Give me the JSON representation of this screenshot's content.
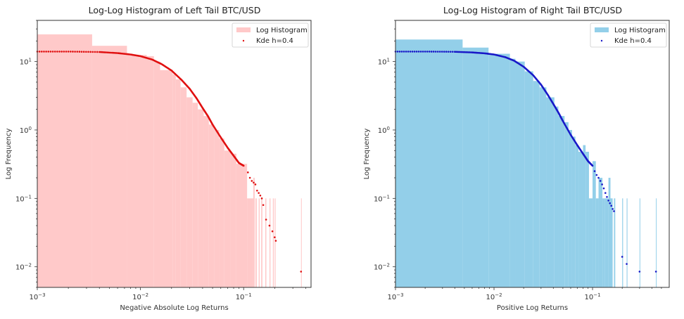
{
  "chart_data": [
    {
      "type": "bar",
      "subtype": "log-log histogram with kde scatter",
      "title": "Log-Log Histogram of Left Tail BTC/USD",
      "xlabel": "Negative Absolute Log Returns",
      "ylabel": "Log Frequency",
      "xscale": "log",
      "yscale": "log",
      "xlim": [
        0.001,
        0.45
      ],
      "ylim": [
        0.005,
        40
      ],
      "xticks": [
        0.001,
        0.01,
        0.1
      ],
      "xtick_labels": [
        [
          "10",
          "−3"
        ],
        [
          "10",
          "−2"
        ],
        [
          "10",
          "−1"
        ]
      ],
      "yticks": [
        0.01,
        0.1,
        1,
        10
      ],
      "ytick_labels": [
        [
          "10",
          "−2"
        ],
        [
          "10",
          "−1"
        ],
        [
          "10",
          "0"
        ],
        [
          "10",
          "1"
        ]
      ],
      "legend": {
        "position": "top-right",
        "entries": [
          "Log Histogram",
          "Kde h=0.4"
        ]
      },
      "colors": {
        "hist": "#ffc9c9",
        "kde": "#e01010"
      },
      "histogram": [
        [
          0.001,
          0.0034,
          25
        ],
        [
          0.0034,
          0.0074,
          17
        ],
        [
          0.0074,
          0.0115,
          12.5
        ],
        [
          0.0115,
          0.0135,
          12
        ],
        [
          0.0135,
          0.0155,
          10
        ],
        [
          0.0155,
          0.0205,
          7.5
        ],
        [
          0.0205,
          0.022,
          6.5
        ],
        [
          0.022,
          0.0245,
          5.5
        ],
        [
          0.0245,
          0.028,
          4.2
        ],
        [
          0.028,
          0.032,
          3
        ],
        [
          0.032,
          0.036,
          2.5
        ],
        [
          0.036,
          0.041,
          2
        ],
        [
          0.041,
          0.046,
          1.6
        ],
        [
          0.046,
          0.052,
          1.2
        ],
        [
          0.052,
          0.058,
          1.0
        ],
        [
          0.058,
          0.065,
          0.75
        ],
        [
          0.065,
          0.075,
          0.5
        ],
        [
          0.075,
          0.085,
          0.45
        ],
        [
          0.085,
          0.095,
          0.32
        ],
        [
          0.095,
          0.108,
          0.32
        ],
        [
          0.108,
          0.124,
          0.1
        ],
        [
          0.124,
          0.128,
          0.2
        ],
        [
          0.13,
          0.134,
          0.1
        ],
        [
          0.14,
          0.143,
          0.1
        ],
        [
          0.148,
          0.152,
          0.1
        ],
        [
          0.162,
          0.166,
          0.1
        ],
        [
          0.178,
          0.182,
          0.1
        ],
        [
          0.192,
          0.196,
          0.1
        ],
        [
          0.2,
          0.204,
          0.1
        ],
        [
          0.36,
          0.364,
          0.1
        ]
      ],
      "kde_points": [
        [
          0.001,
          14
        ],
        [
          0.002,
          14
        ],
        [
          0.004,
          13.8
        ],
        [
          0.006,
          13.3
        ],
        [
          0.008,
          12.7
        ],
        [
          0.01,
          12
        ],
        [
          0.013,
          10.7
        ],
        [
          0.016,
          9.2
        ],
        [
          0.02,
          7.4
        ],
        [
          0.025,
          5.4
        ],
        [
          0.03,
          4
        ],
        [
          0.035,
          2.9
        ],
        [
          0.04,
          2.1
        ],
        [
          0.045,
          1.6
        ],
        [
          0.05,
          1.2
        ],
        [
          0.06,
          0.78
        ],
        [
          0.07,
          0.55
        ],
        [
          0.08,
          0.42
        ],
        [
          0.09,
          0.33
        ],
        [
          0.1,
          0.3
        ],
        [
          0.11,
          0.24
        ],
        [
          0.115,
          0.2
        ],
        [
          0.12,
          0.18
        ],
        [
          0.125,
          0.17
        ],
        [
          0.13,
          0.16
        ],
        [
          0.135,
          0.13
        ],
        [
          0.14,
          0.12
        ],
        [
          0.145,
          0.11
        ],
        [
          0.15,
          0.1
        ],
        [
          0.155,
          0.08
        ],
        [
          0.165,
          0.049
        ],
        [
          0.178,
          0.04
        ],
        [
          0.19,
          0.033
        ],
        [
          0.2,
          0.027
        ],
        [
          0.205,
          0.024
        ],
        [
          0.36,
          0.0085
        ]
      ]
    },
    {
      "type": "bar",
      "subtype": "log-log histogram with kde scatter",
      "title": "Log-Log Histogram of Right Tail BTC/USD",
      "xlabel": "Positive Log Returns",
      "ylabel": "Log Frequency",
      "xscale": "log",
      "yscale": "log",
      "xlim": [
        0.001,
        0.6
      ],
      "ylim": [
        0.005,
        40
      ],
      "xticks": [
        0.001,
        0.01,
        0.1
      ],
      "xtick_labels": [
        [
          "10",
          "−3"
        ],
        [
          "10",
          "−2"
        ],
        [
          "10",
          "−1"
        ]
      ],
      "yticks": [
        0.01,
        0.1,
        1,
        10
      ],
      "ytick_labels": [
        [
          "10",
          "−2"
        ],
        [
          "10",
          "−1"
        ],
        [
          "10",
          "0"
        ],
        [
          "10",
          "1"
        ]
      ],
      "legend": {
        "position": "top-right",
        "entries": [
          "Log Histogram",
          "Kde h=0.4"
        ]
      },
      "colors": {
        "hist": "#93cfe9",
        "kde": "#1818c8"
      },
      "histogram": [
        [
          0.001,
          0.0048,
          21
        ],
        [
          0.0048,
          0.0088,
          16
        ],
        [
          0.0088,
          0.0145,
          13
        ],
        [
          0.0145,
          0.0165,
          11
        ],
        [
          0.0165,
          0.0205,
          10
        ],
        [
          0.0205,
          0.025,
          7.2
        ],
        [
          0.025,
          0.029,
          5.2
        ],
        [
          0.029,
          0.034,
          4.2
        ],
        [
          0.034,
          0.041,
          3
        ],
        [
          0.041,
          0.045,
          2.2
        ],
        [
          0.045,
          0.052,
          1.6
        ],
        [
          0.052,
          0.057,
          1.3
        ],
        [
          0.057,
          0.062,
          1.0
        ],
        [
          0.062,
          0.067,
          0.8
        ],
        [
          0.067,
          0.072,
          0.6
        ],
        [
          0.072,
          0.08,
          0.48
        ],
        [
          0.08,
          0.085,
          0.6
        ],
        [
          0.085,
          0.092,
          0.48
        ],
        [
          0.092,
          0.1,
          0.1
        ],
        [
          0.1,
          0.108,
          0.35
        ],
        [
          0.108,
          0.115,
          0.1
        ],
        [
          0.115,
          0.126,
          0.2
        ],
        [
          0.126,
          0.134,
          0.1
        ],
        [
          0.134,
          0.145,
          0.1
        ],
        [
          0.145,
          0.152,
          0.2
        ],
        [
          0.152,
          0.16,
          0.1
        ],
        [
          0.165,
          0.17,
          0.1
        ],
        [
          0.2,
          0.204,
          0.1
        ],
        [
          0.222,
          0.226,
          0.1
        ],
        [
          0.3,
          0.304,
          0.1
        ],
        [
          0.44,
          0.444,
          0.1
        ]
      ],
      "kde_points": [
        [
          0.001,
          14
        ],
        [
          0.002,
          14
        ],
        [
          0.004,
          13.9
        ],
        [
          0.006,
          13.6
        ],
        [
          0.008,
          13.2
        ],
        [
          0.01,
          12.7
        ],
        [
          0.013,
          11.6
        ],
        [
          0.016,
          10.3
        ],
        [
          0.02,
          8.4
        ],
        [
          0.025,
          6.3
        ],
        [
          0.03,
          4.6
        ],
        [
          0.035,
          3.3
        ],
        [
          0.04,
          2.4
        ],
        [
          0.045,
          1.8
        ],
        [
          0.05,
          1.35
        ],
        [
          0.06,
          0.85
        ],
        [
          0.07,
          0.6
        ],
        [
          0.08,
          0.45
        ],
        [
          0.09,
          0.35
        ],
        [
          0.1,
          0.3
        ],
        [
          0.105,
          0.25
        ],
        [
          0.11,
          0.22
        ],
        [
          0.115,
          0.2
        ],
        [
          0.12,
          0.18
        ],
        [
          0.125,
          0.16
        ],
        [
          0.13,
          0.14
        ],
        [
          0.135,
          0.12
        ],
        [
          0.14,
          0.105
        ],
        [
          0.145,
          0.093
        ],
        [
          0.15,
          0.085
        ],
        [
          0.155,
          0.078
        ],
        [
          0.16,
          0.07
        ],
        [
          0.165,
          0.065
        ],
        [
          0.2,
          0.014
        ],
        [
          0.222,
          0.011
        ],
        [
          0.3,
          0.0085
        ],
        [
          0.44,
          0.0085
        ]
      ]
    }
  ]
}
